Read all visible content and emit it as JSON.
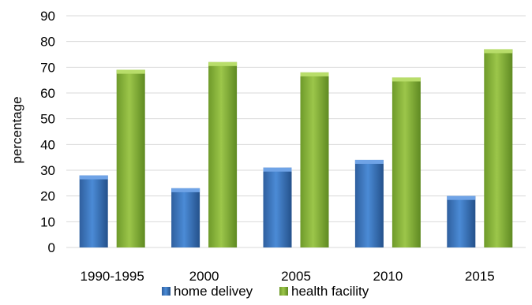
{
  "chart_data": {
    "type": "bar",
    "title": "",
    "xlabel": "",
    "ylabel": "percentage",
    "ylim": [
      0,
      90
    ],
    "yticks": [
      0,
      10,
      20,
      30,
      40,
      50,
      60,
      70,
      80,
      90
    ],
    "grid": true,
    "legend_position": "bottom",
    "categories": [
      "1990-1995",
      "2000",
      "2005",
      "2010",
      "2015"
    ],
    "series": [
      {
        "name": "home delivey",
        "color": "#3a76c0",
        "values": [
          28,
          23,
          31,
          34,
          20
        ]
      },
      {
        "name": "health facility",
        "color": "#8ab43a",
        "values": [
          69,
          72,
          68,
          66,
          77
        ]
      }
    ]
  }
}
